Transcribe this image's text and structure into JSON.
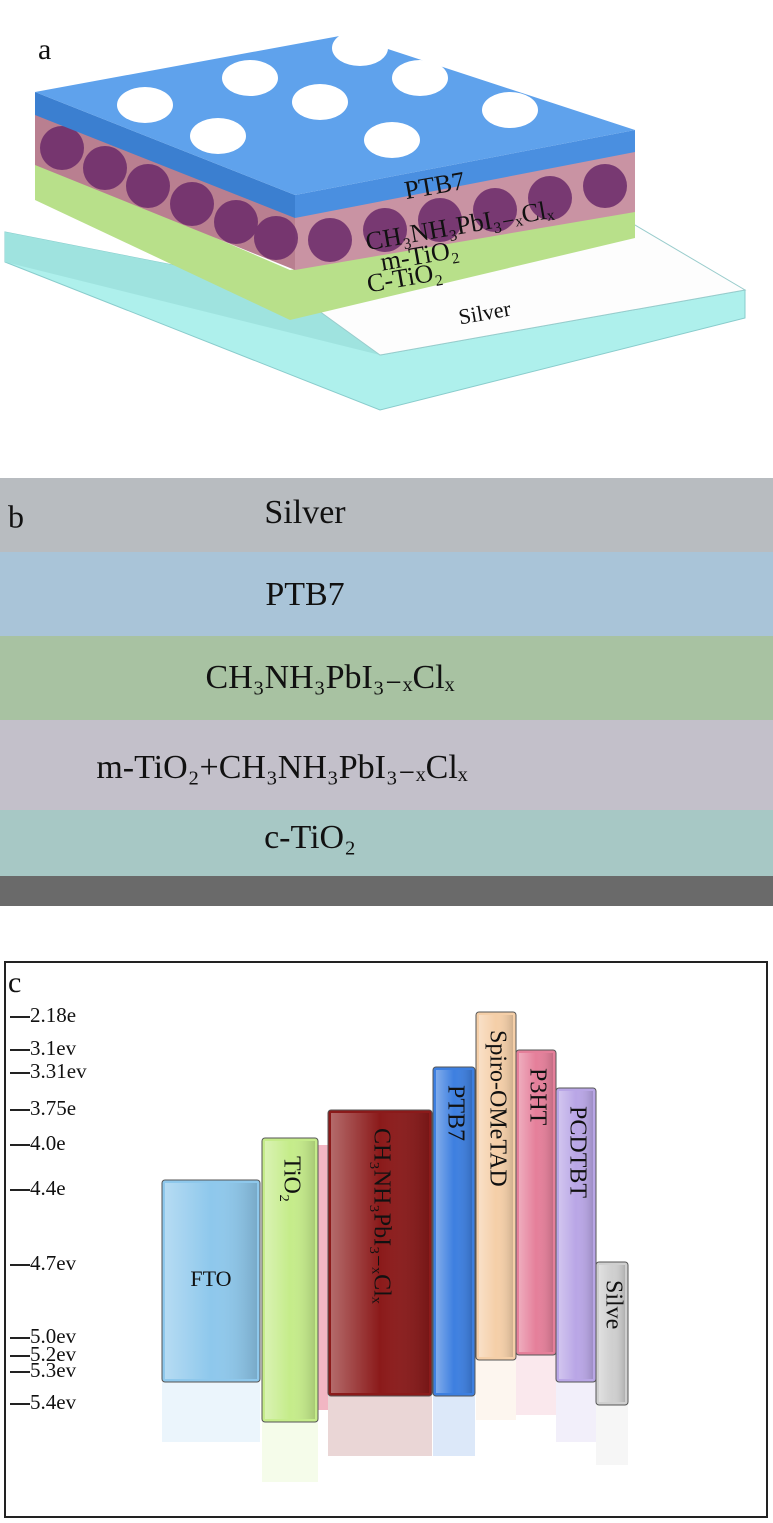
{
  "panel_a": {
    "letter": "a",
    "layers": [
      "PTB7",
      "CH₃NH₃PbI₃₋ₓClₓ",
      "m-TiO₂",
      "C-TiO₂",
      "Silver"
    ]
  },
  "panel_b": {
    "letter": "b",
    "layers": [
      "Silver",
      "PTB7",
      "CH₃NH₃PbI₃₋ₓClₓ",
      "m-TiO₂+CH₃NH₃PbI₃₋ₓClₓ",
      "c-TiO₂"
    ]
  },
  "panel_c": {
    "letter": "c",
    "levels": [
      "2.18e",
      "3.1ev",
      "3.31ev",
      "3.75e",
      "4.0e",
      "4.4e",
      "4.7ev",
      "5.0ev",
      "5.2ev",
      "5.3ev",
      "5.4ev"
    ],
    "materials": [
      "FTO",
      "TiO₂",
      "CH₃NH₃PbI₃₋ₓClₓ",
      "PTB7",
      "Spiro-OMeTAD",
      "P3HT",
      "PCDTBT",
      "Silve"
    ]
  }
}
